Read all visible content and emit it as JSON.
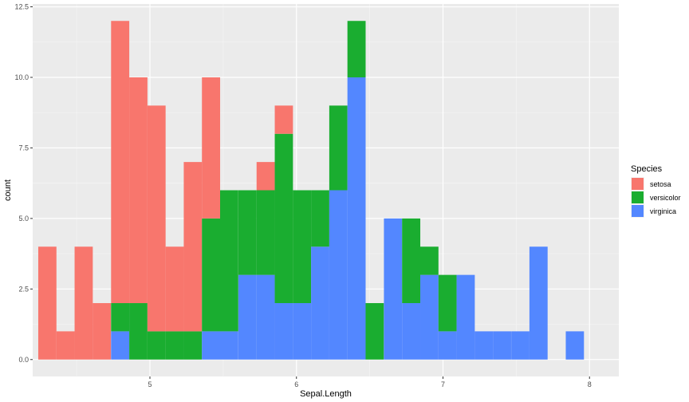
{
  "chart_data": {
    "type": "bar",
    "subtype": "stacked-histogram",
    "xlabel": "Sepal.Length",
    "ylabel": "count",
    "xlim": [
      4.2,
      8.2
    ],
    "ylim": [
      -0.6,
      12.6
    ],
    "x_ticks": [
      5,
      6,
      7,
      8
    ],
    "x_tick_labels": [
      "5",
      "6",
      "7",
      "8"
    ],
    "y_ticks": [
      0,
      2.5,
      5,
      7.5,
      10,
      12.5
    ],
    "y_tick_labels": [
      "0.0",
      "2.5",
      "5.0",
      "7.5",
      "10.0",
      "12.5"
    ],
    "grid": true,
    "legend": {
      "title": "Species",
      "position": "right"
    },
    "bin_width": 0.124138,
    "bin_centers": [
      4.3,
      4.424,
      4.548,
      4.672,
      4.797,
      4.921,
      5.045,
      5.169,
      5.293,
      5.417,
      5.541,
      5.666,
      5.79,
      5.914,
      6.038,
      6.162,
      6.286,
      6.41,
      6.534,
      6.659,
      6.783,
      6.907,
      7.031,
      7.155,
      7.279,
      7.403,
      7.528,
      7.652,
      7.776,
      7.9
    ],
    "series": [
      {
        "name": "setosa",
        "color": "#F8766D",
        "values": [
          4,
          1,
          4,
          2,
          10,
          8,
          8,
          3,
          6,
          5,
          0,
          0,
          1,
          1,
          0,
          0,
          0,
          0,
          0,
          0,
          0,
          0,
          0,
          0,
          0,
          0,
          0,
          0,
          0,
          0
        ]
      },
      {
        "name": "versicolor",
        "color": "#1AAD30",
        "values": [
          0,
          0,
          0,
          0,
          1,
          2,
          1,
          1,
          1,
          4,
          5,
          3,
          3,
          6,
          4,
          2,
          3,
          2,
          2,
          0,
          3,
          1,
          2,
          0,
          0,
          0,
          0,
          0,
          0,
          0
        ]
      },
      {
        "name": "virginica",
        "color": "#5387FF",
        "values": [
          0,
          0,
          0,
          0,
          1,
          0,
          0,
          0,
          0,
          1,
          1,
          3,
          3,
          2,
          2,
          4,
          6,
          10,
          0,
          5,
          2,
          3,
          1,
          3,
          1,
          1,
          1,
          4,
          0,
          1
        ]
      }
    ]
  }
}
